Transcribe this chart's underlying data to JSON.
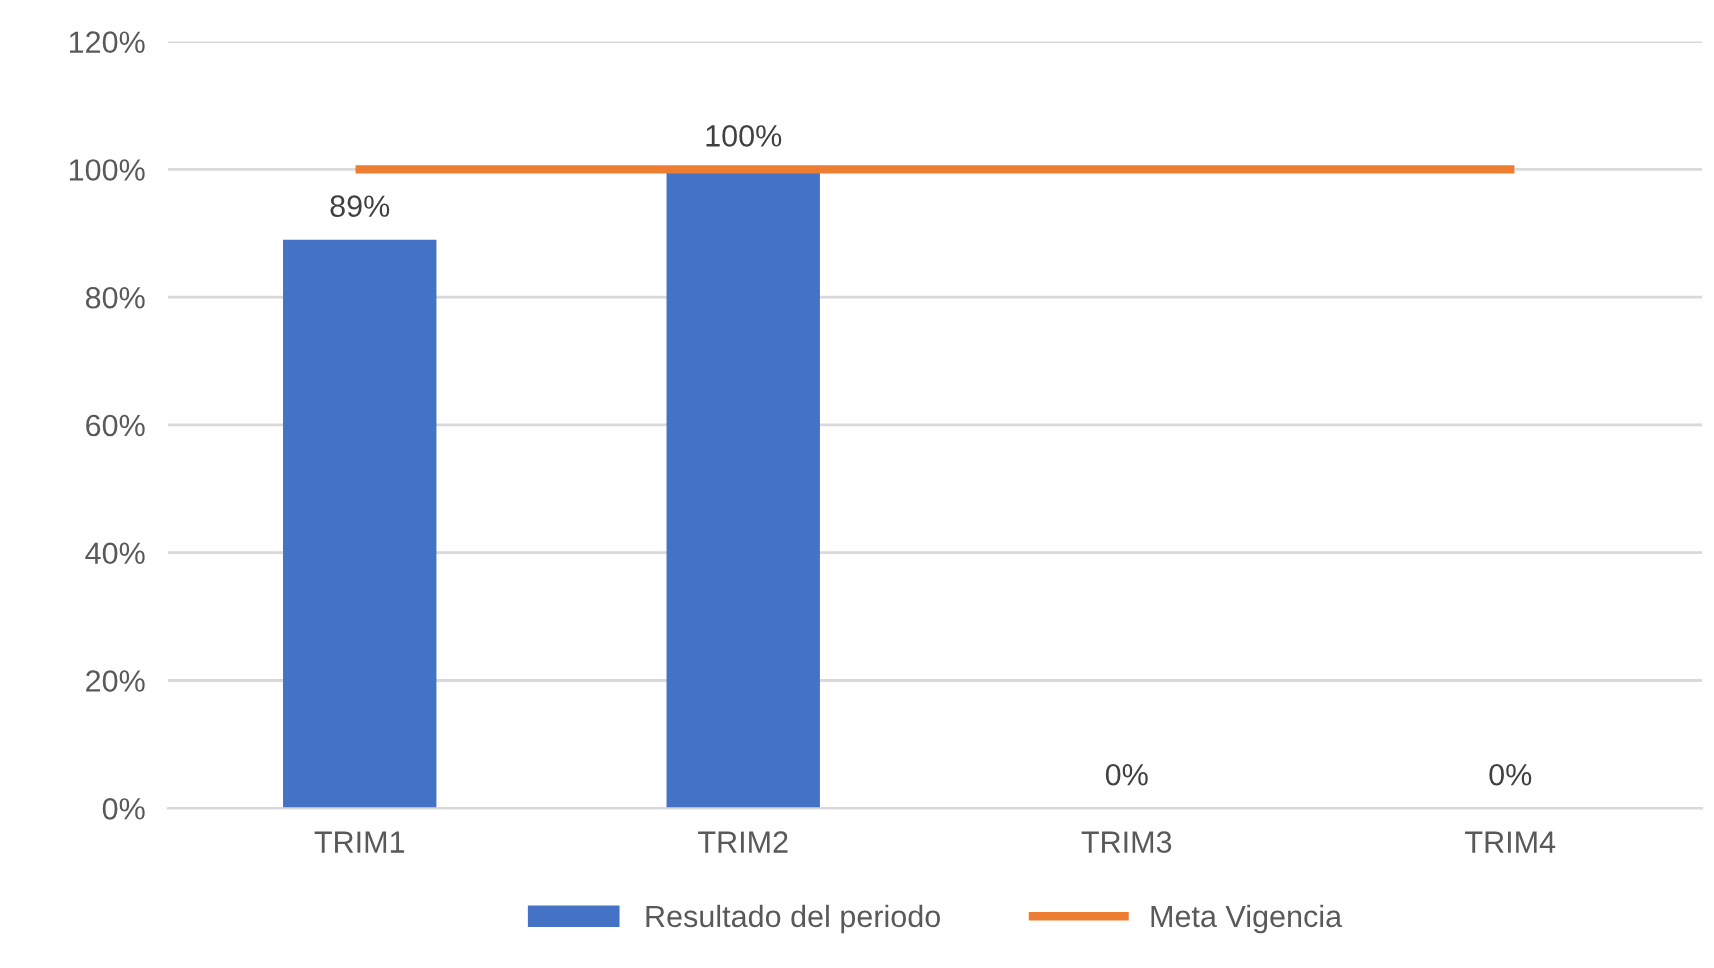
{
  "chart_data": {
    "type": "bar",
    "categories": [
      "TRIM1",
      "TRIM2",
      "TRIM3",
      "TRIM4"
    ],
    "series": [
      {
        "name": "Resultado del periodo",
        "color": "#4472c4",
        "values": [
          89,
          100,
          0,
          0
        ],
        "value_labels": [
          "89%",
          "100%",
          "0%",
          "0%"
        ]
      },
      {
        "name": "Meta Vigencia",
        "type": "line",
        "color": "#ed7d31",
        "values": [
          100,
          100,
          100,
          100
        ],
        "marker": "none"
      }
    ],
    "ylim": [
      0,
      120
    ],
    "yticks": [
      {
        "value": 0,
        "label": "0%"
      },
      {
        "value": 20,
        "label": "20%"
      },
      {
        "value": 40,
        "label": "40%"
      },
      {
        "value": 60,
        "label": "60%"
      },
      {
        "value": 80,
        "label": "80%"
      },
      {
        "value": 100,
        "label": "100%"
      },
      {
        "value": 120,
        "label": "120%"
      }
    ],
    "grid": "y",
    "legend": "bottom"
  }
}
